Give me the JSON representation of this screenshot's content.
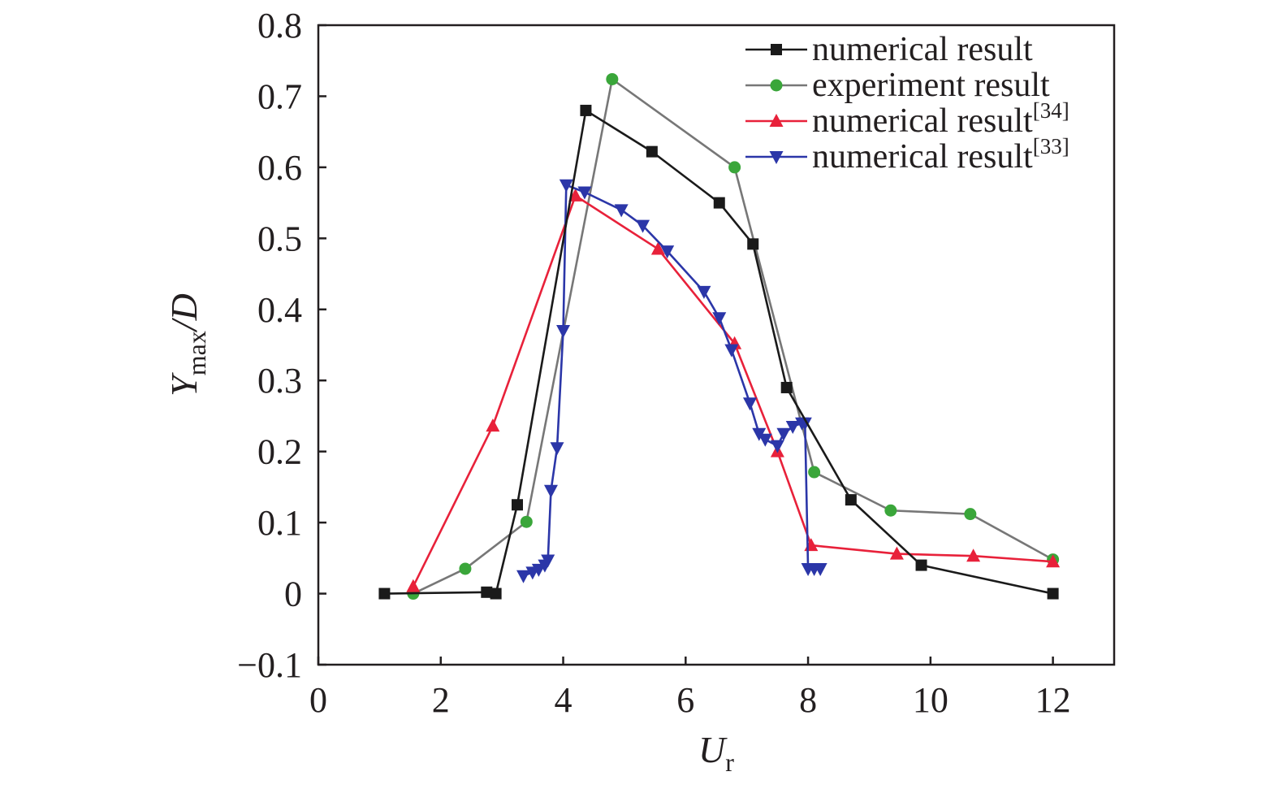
{
  "chart_data": {
    "type": "line",
    "title": "",
    "xlabel": {
      "main": "U",
      "sub": "r"
    },
    "ylabel": {
      "main": "Y",
      "sub": "max",
      "tail": "/D"
    },
    "xlim": [
      0,
      13
    ],
    "ylim": [
      -0.1,
      0.8
    ],
    "xticks": [
      0,
      2,
      4,
      6,
      8,
      10,
      12
    ],
    "yticks": [
      -0.1,
      0,
      0.1,
      0.2,
      0.3,
      0.4,
      0.5,
      0.6,
      0.7,
      0.8
    ],
    "xtick_labels": [
      "0",
      "2",
      "4",
      "6",
      "8",
      "10",
      "12"
    ],
    "ytick_labels": [
      "−0.1",
      "0",
      "0.1",
      "0.2",
      "0.3",
      "0.4",
      "0.5",
      "0.6",
      "0.7",
      "0.8"
    ],
    "grid": false,
    "legend_position": "top-right",
    "series": [
      {
        "name": "numerical result",
        "sup": "",
        "color": "#1a1a1a",
        "marker": "square",
        "x": [
          1.08,
          2.75,
          2.9,
          3.25,
          4.37,
          5.45,
          6.55,
          7.1,
          7.65,
          8.7,
          9.85,
          12.0
        ],
        "y": [
          0.0,
          0.002,
          0.0,
          0.125,
          0.68,
          0.622,
          0.55,
          0.492,
          0.29,
          0.132,
          0.04,
          0.0
        ]
      },
      {
        "name": "experiment result",
        "sup": "",
        "color": "#3aa63a",
        "line_color": "#777777",
        "marker": "circle",
        "x": [
          1.55,
          2.4,
          3.4,
          4.8,
          6.8,
          8.1,
          9.35,
          10.65,
          12.0
        ],
        "y": [
          0.0,
          0.035,
          0.101,
          0.724,
          0.6,
          0.171,
          0.117,
          0.112,
          0.048
        ]
      },
      {
        "name": "numerical result",
        "sup": "[34]",
        "color": "#e8213a",
        "marker": "triangle-up",
        "x": [
          1.55,
          2.85,
          4.2,
          5.55,
          6.8,
          7.5,
          8.05,
          9.45,
          10.7,
          12.0
        ],
        "y": [
          0.01,
          0.236,
          0.56,
          0.485,
          0.352,
          0.2,
          0.068,
          0.056,
          0.053,
          0.045
        ]
      },
      {
        "name": "numerical result",
        "sup": "[33]",
        "color": "#2b36a8",
        "marker": "triangle-down",
        "x": [
          3.35,
          3.5,
          3.6,
          3.7,
          3.75,
          3.8,
          3.9,
          4.0,
          4.05,
          4.35,
          4.95,
          5.3,
          5.7,
          6.3,
          6.55,
          6.75,
          7.05,
          7.2,
          7.3,
          7.5,
          7.6,
          7.75,
          7.9,
          7.95,
          8.0,
          8.1,
          8.2
        ],
        "y": [
          0.025,
          0.03,
          0.034,
          0.04,
          0.047,
          0.145,
          0.205,
          0.37,
          0.575,
          0.565,
          0.54,
          0.518,
          0.482,
          0.425,
          0.388,
          0.343,
          0.268,
          0.225,
          0.217,
          0.208,
          0.225,
          0.235,
          0.24,
          0.24,
          0.035,
          0.035,
          0.035
        ]
      }
    ]
  }
}
